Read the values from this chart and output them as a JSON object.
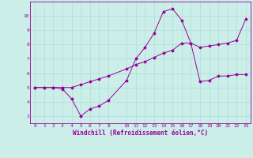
{
  "xlabel": "Windchill (Refroidissement éolien,°C)",
  "bg_color": "#cceee8",
  "grid_color": "#aadddd",
  "line_color": "#990099",
  "line1_x": [
    0,
    1,
    2,
    3,
    4,
    5,
    6,
    7,
    8,
    10,
    11,
    12,
    13,
    14,
    15,
    16,
    17,
    18,
    19,
    20,
    21,
    22,
    23
  ],
  "line1_y": [
    5.0,
    5.0,
    5.0,
    4.9,
    4.2,
    3.0,
    3.5,
    3.7,
    4.1,
    5.5,
    7.0,
    7.8,
    8.8,
    10.3,
    10.5,
    9.7,
    8.1,
    5.4,
    5.5,
    5.8,
    5.8,
    5.9,
    5.9
  ],
  "line2_x": [
    0,
    1,
    2,
    3,
    4,
    5,
    6,
    7,
    8,
    10,
    11,
    12,
    13,
    14,
    15,
    16,
    17,
    18,
    19,
    20,
    21,
    22,
    23
  ],
  "line2_y": [
    5.0,
    5.0,
    5.0,
    5.0,
    5.0,
    5.2,
    5.4,
    5.6,
    5.8,
    6.3,
    6.6,
    6.8,
    7.1,
    7.4,
    7.6,
    8.1,
    8.1,
    7.8,
    7.9,
    8.0,
    8.1,
    8.3,
    9.8
  ],
  "xlim": [
    -0.5,
    23.5
  ],
  "ylim": [
    2.5,
    11.0
  ],
  "yticks": [
    3,
    4,
    5,
    6,
    7,
    8,
    9,
    10
  ],
  "xticks": [
    0,
    1,
    2,
    3,
    4,
    5,
    6,
    7,
    8,
    10,
    11,
    12,
    13,
    14,
    15,
    16,
    17,
    18,
    19,
    20,
    21,
    22,
    23
  ],
  "tick_fontsize": 4.5,
  "xlabel_fontsize": 5.5,
  "marker": "D",
  "marker_size": 1.5,
  "line_width": 0.7
}
